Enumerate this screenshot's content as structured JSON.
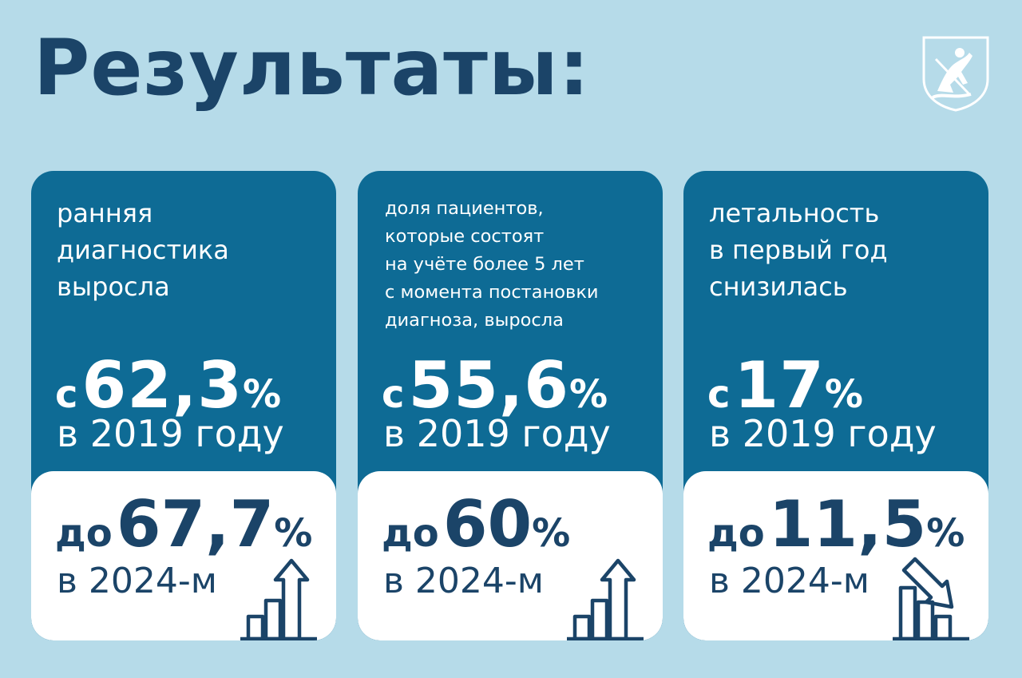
{
  "title": "Результаты:",
  "emblem": {
    "icon": "moscow-coat-of-arms-icon"
  },
  "cards": [
    {
      "description": "ранняя\nдиагностика\nвыросла",
      "from_prefix": "с",
      "from_value": "62,3",
      "from_unit": "%",
      "from_year": "в 2019 году",
      "to_prefix": "до",
      "to_value": "67,7",
      "to_unit": "%",
      "to_year": "в 2024-м",
      "trend": "up",
      "icon": "growth-chart-icon"
    },
    {
      "description": "доля пациентов,\nкоторые состоят\nна учёте более 5 лет\nс момента постановки\nдиагноза, выросла",
      "from_prefix": "с",
      "from_value": "55,6",
      "from_unit": "%",
      "from_year": "в 2019 году",
      "to_prefix": "до",
      "to_value": "60",
      "to_unit": "%",
      "to_year": "в 2024-м",
      "trend": "up",
      "icon": "growth-chart-icon"
    },
    {
      "description": "летальность\nв первый год\nснизилась",
      "from_prefix": "с",
      "from_value": "17",
      "from_unit": "%",
      "from_year": "в 2019 году",
      "to_prefix": "до",
      "to_value": "11,5",
      "to_unit": "%",
      "to_year": "в 2024-м",
      "trend": "down",
      "icon": "decline-chart-icon"
    }
  ],
  "colors": {
    "background": "#b6dbe9",
    "card": "#0e6b95",
    "accent_text": "#1b4468",
    "white": "#ffffff"
  }
}
